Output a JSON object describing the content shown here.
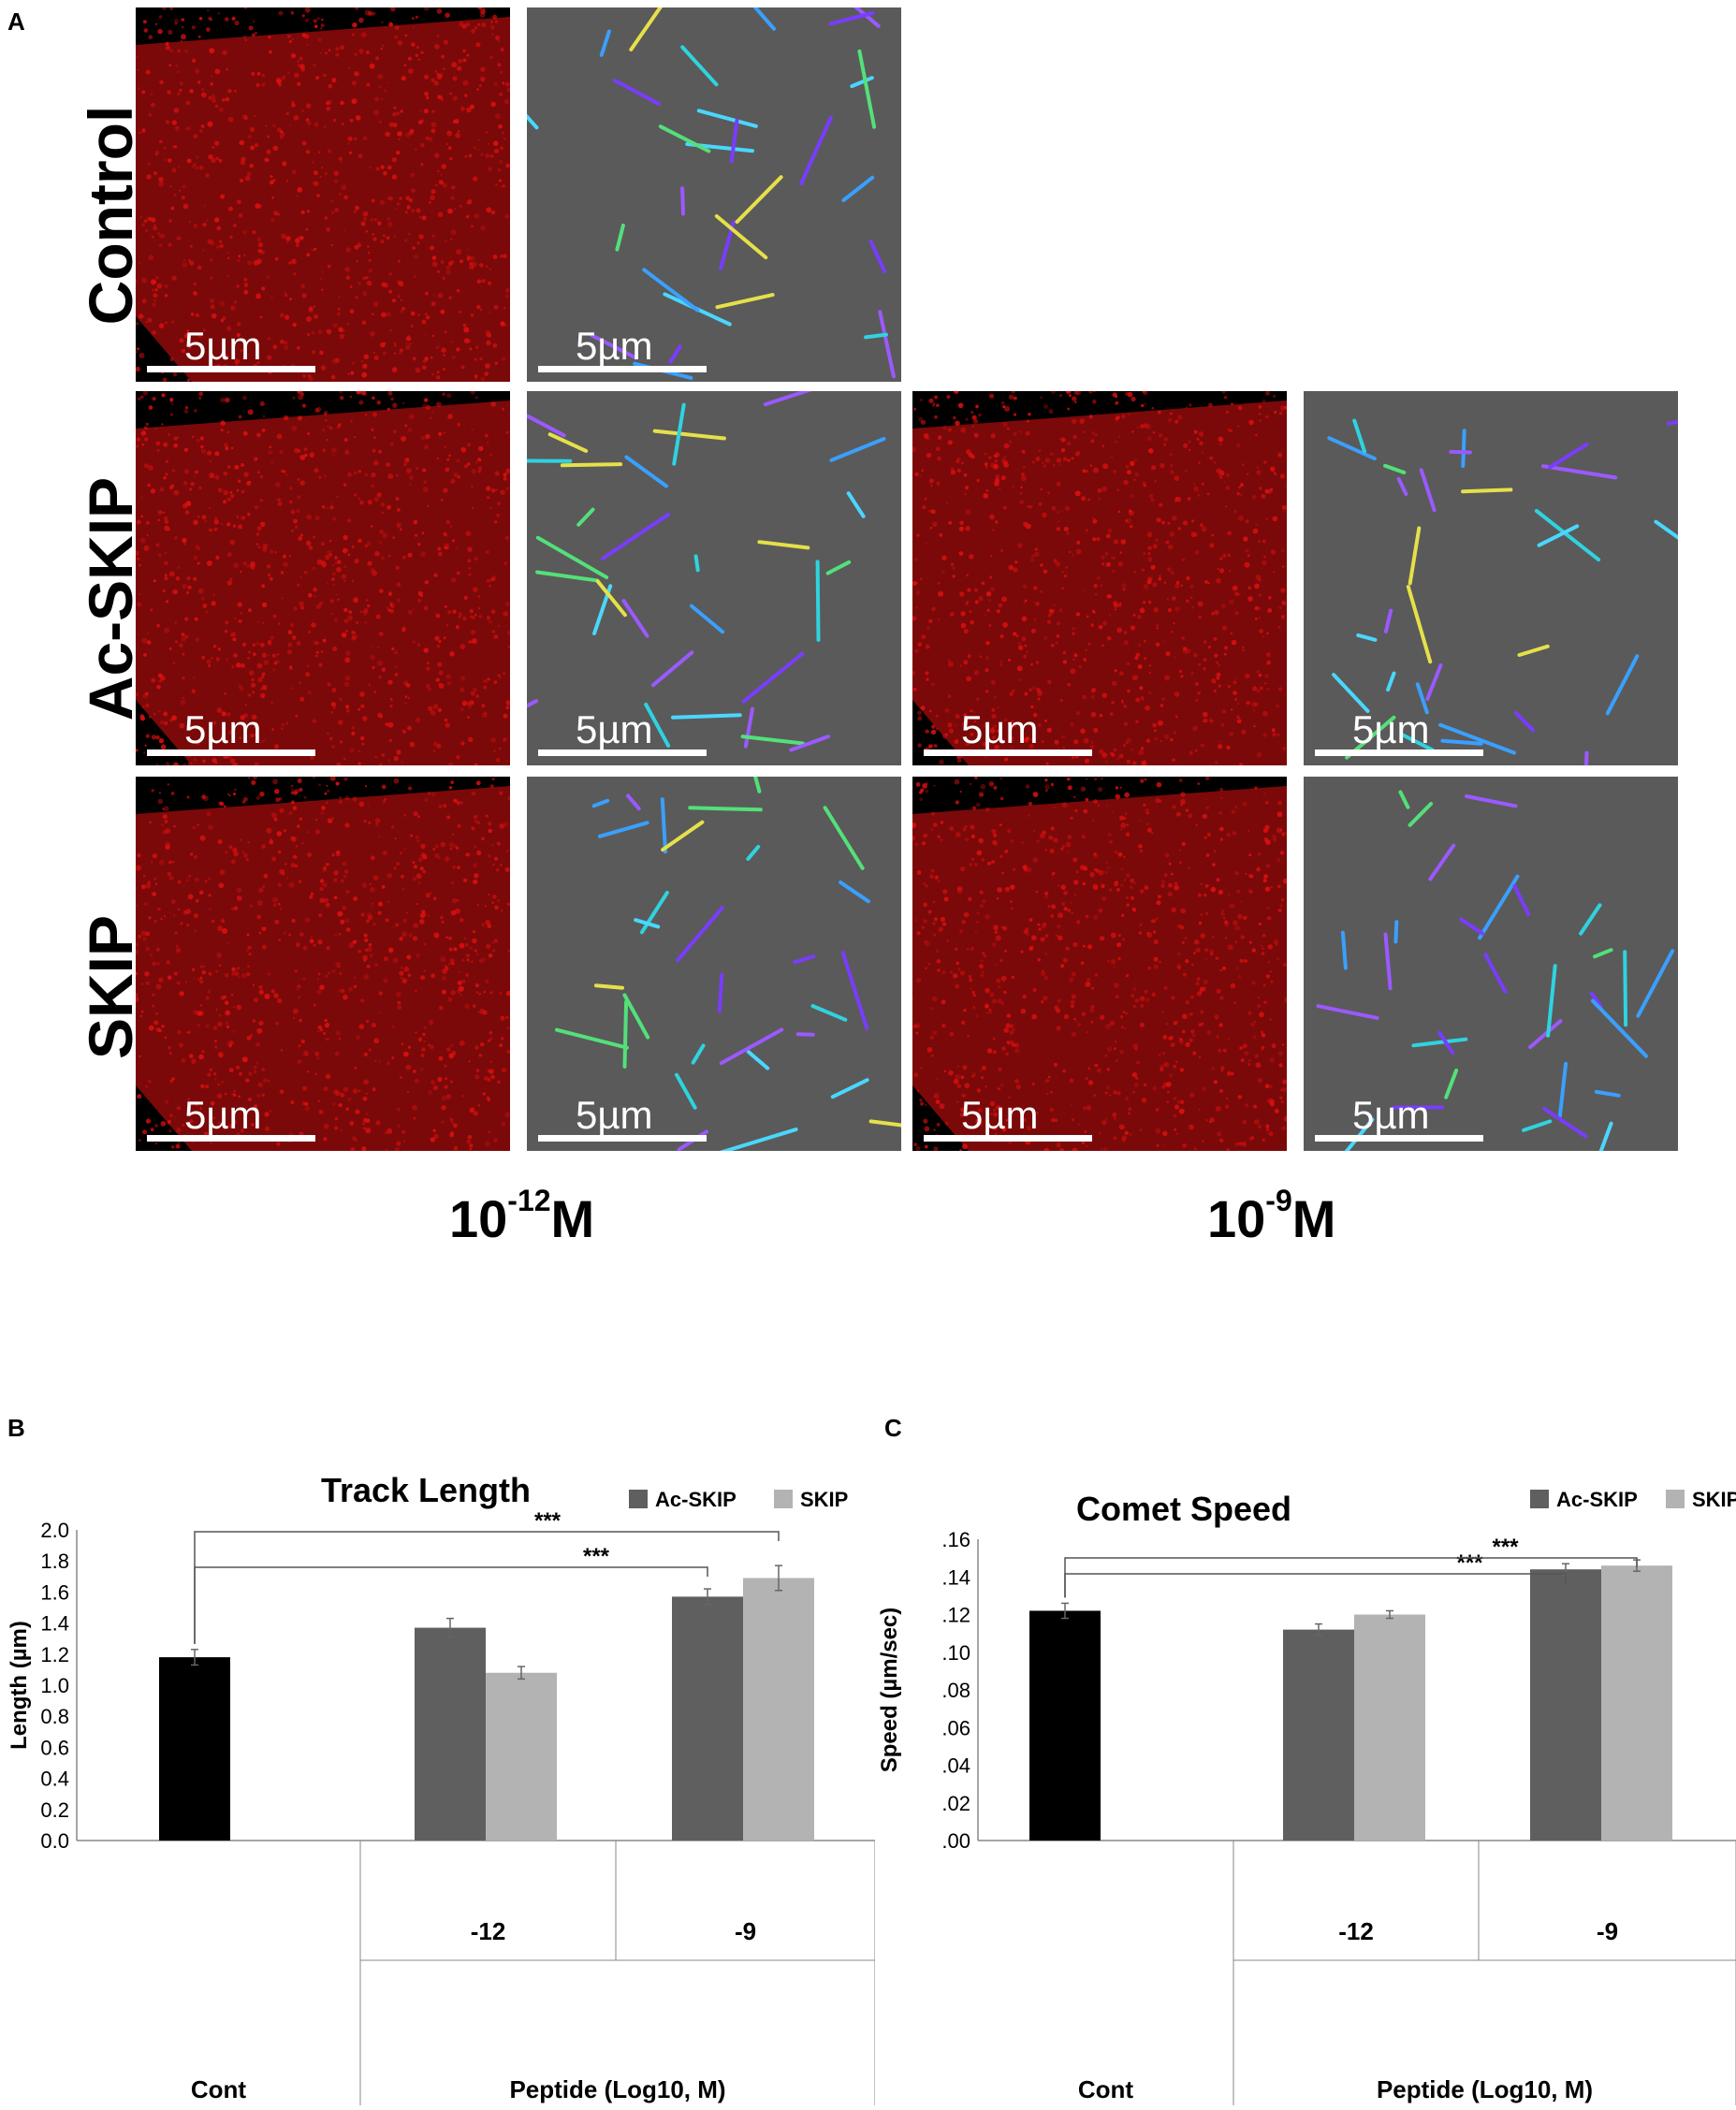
{
  "panel_a": {
    "letter": "A",
    "row_labels": [
      "Control",
      "Ac-SKIP",
      "SKIP"
    ],
    "scale_label": "5µm",
    "concentrations": [
      {
        "base": "10",
        "exp": "-12",
        "unit": "M"
      },
      {
        "base": "10",
        "exp": "-9",
        "unit": "M"
      }
    ]
  },
  "colors": {
    "fluorescence": "#e01010",
    "track_background": "#5a5a5a",
    "control_bar": "#000000",
    "ac_skip_bar": "#5f5f5f",
    "skip_bar": "#b3b3b3"
  },
  "chart_data": [
    {
      "panel": "B",
      "type": "bar",
      "title": "Track Length",
      "ylabel": "Length (µm)",
      "ylim": [
        0,
        2.0
      ],
      "yticks": [
        "0.0",
        "0.2",
        "0.4",
        "0.6",
        "0.8",
        "1.0",
        "1.2",
        "1.4",
        "1.6",
        "1.8",
        "2.0"
      ],
      "ytick_values": [
        0,
        0.2,
        0.4,
        0.6,
        0.8,
        1.0,
        1.2,
        1.4,
        1.6,
        1.8,
        2.0
      ],
      "legend": [
        "Ac-SKIP",
        "SKIP"
      ],
      "legend_position": "top-right",
      "group_labels": [
        "-12",
        "-9"
      ],
      "bottom_labels": [
        "Cont",
        "Peptide (Log10, M)"
      ],
      "control": {
        "value": 1.18,
        "error": 0.05
      },
      "series": [
        {
          "name": "Ac-SKIP",
          "values": [
            1.37,
            1.57
          ],
          "errors": [
            0.06,
            0.05
          ]
        },
        {
          "name": "SKIP",
          "values": [
            1.08,
            1.69
          ],
          "errors": [
            0.04,
            0.08
          ]
        }
      ],
      "significance": [
        "***",
        "***"
      ]
    },
    {
      "panel": "C",
      "type": "bar",
      "title": "Comet Speed",
      "ylabel": "Speed (µm/sec)",
      "ylim": [
        0,
        0.16
      ],
      "yticks": [
        ".00",
        ".02",
        ".04",
        ".06",
        ".08",
        ".10",
        ".12",
        ".14",
        ".16"
      ],
      "ytick_values": [
        0,
        0.02,
        0.04,
        0.06,
        0.08,
        0.1,
        0.12,
        0.14,
        0.16
      ],
      "legend": [
        "Ac-SKIP",
        "SKIP"
      ],
      "legend_position": "top-right",
      "group_labels": [
        "-12",
        "-9"
      ],
      "bottom_labels": [
        "Cont",
        "Peptide (Log10, M)"
      ],
      "control": {
        "value": 0.122,
        "error": 0.004
      },
      "series": [
        {
          "name": "Ac-SKIP",
          "values": [
            0.112,
            0.144
          ],
          "errors": [
            0.003,
            0.003
          ]
        },
        {
          "name": "SKIP",
          "values": [
            0.12,
            0.146
          ],
          "errors": [
            0.002,
            0.003
          ]
        }
      ],
      "significance": [
        "***",
        "***"
      ]
    }
  ]
}
